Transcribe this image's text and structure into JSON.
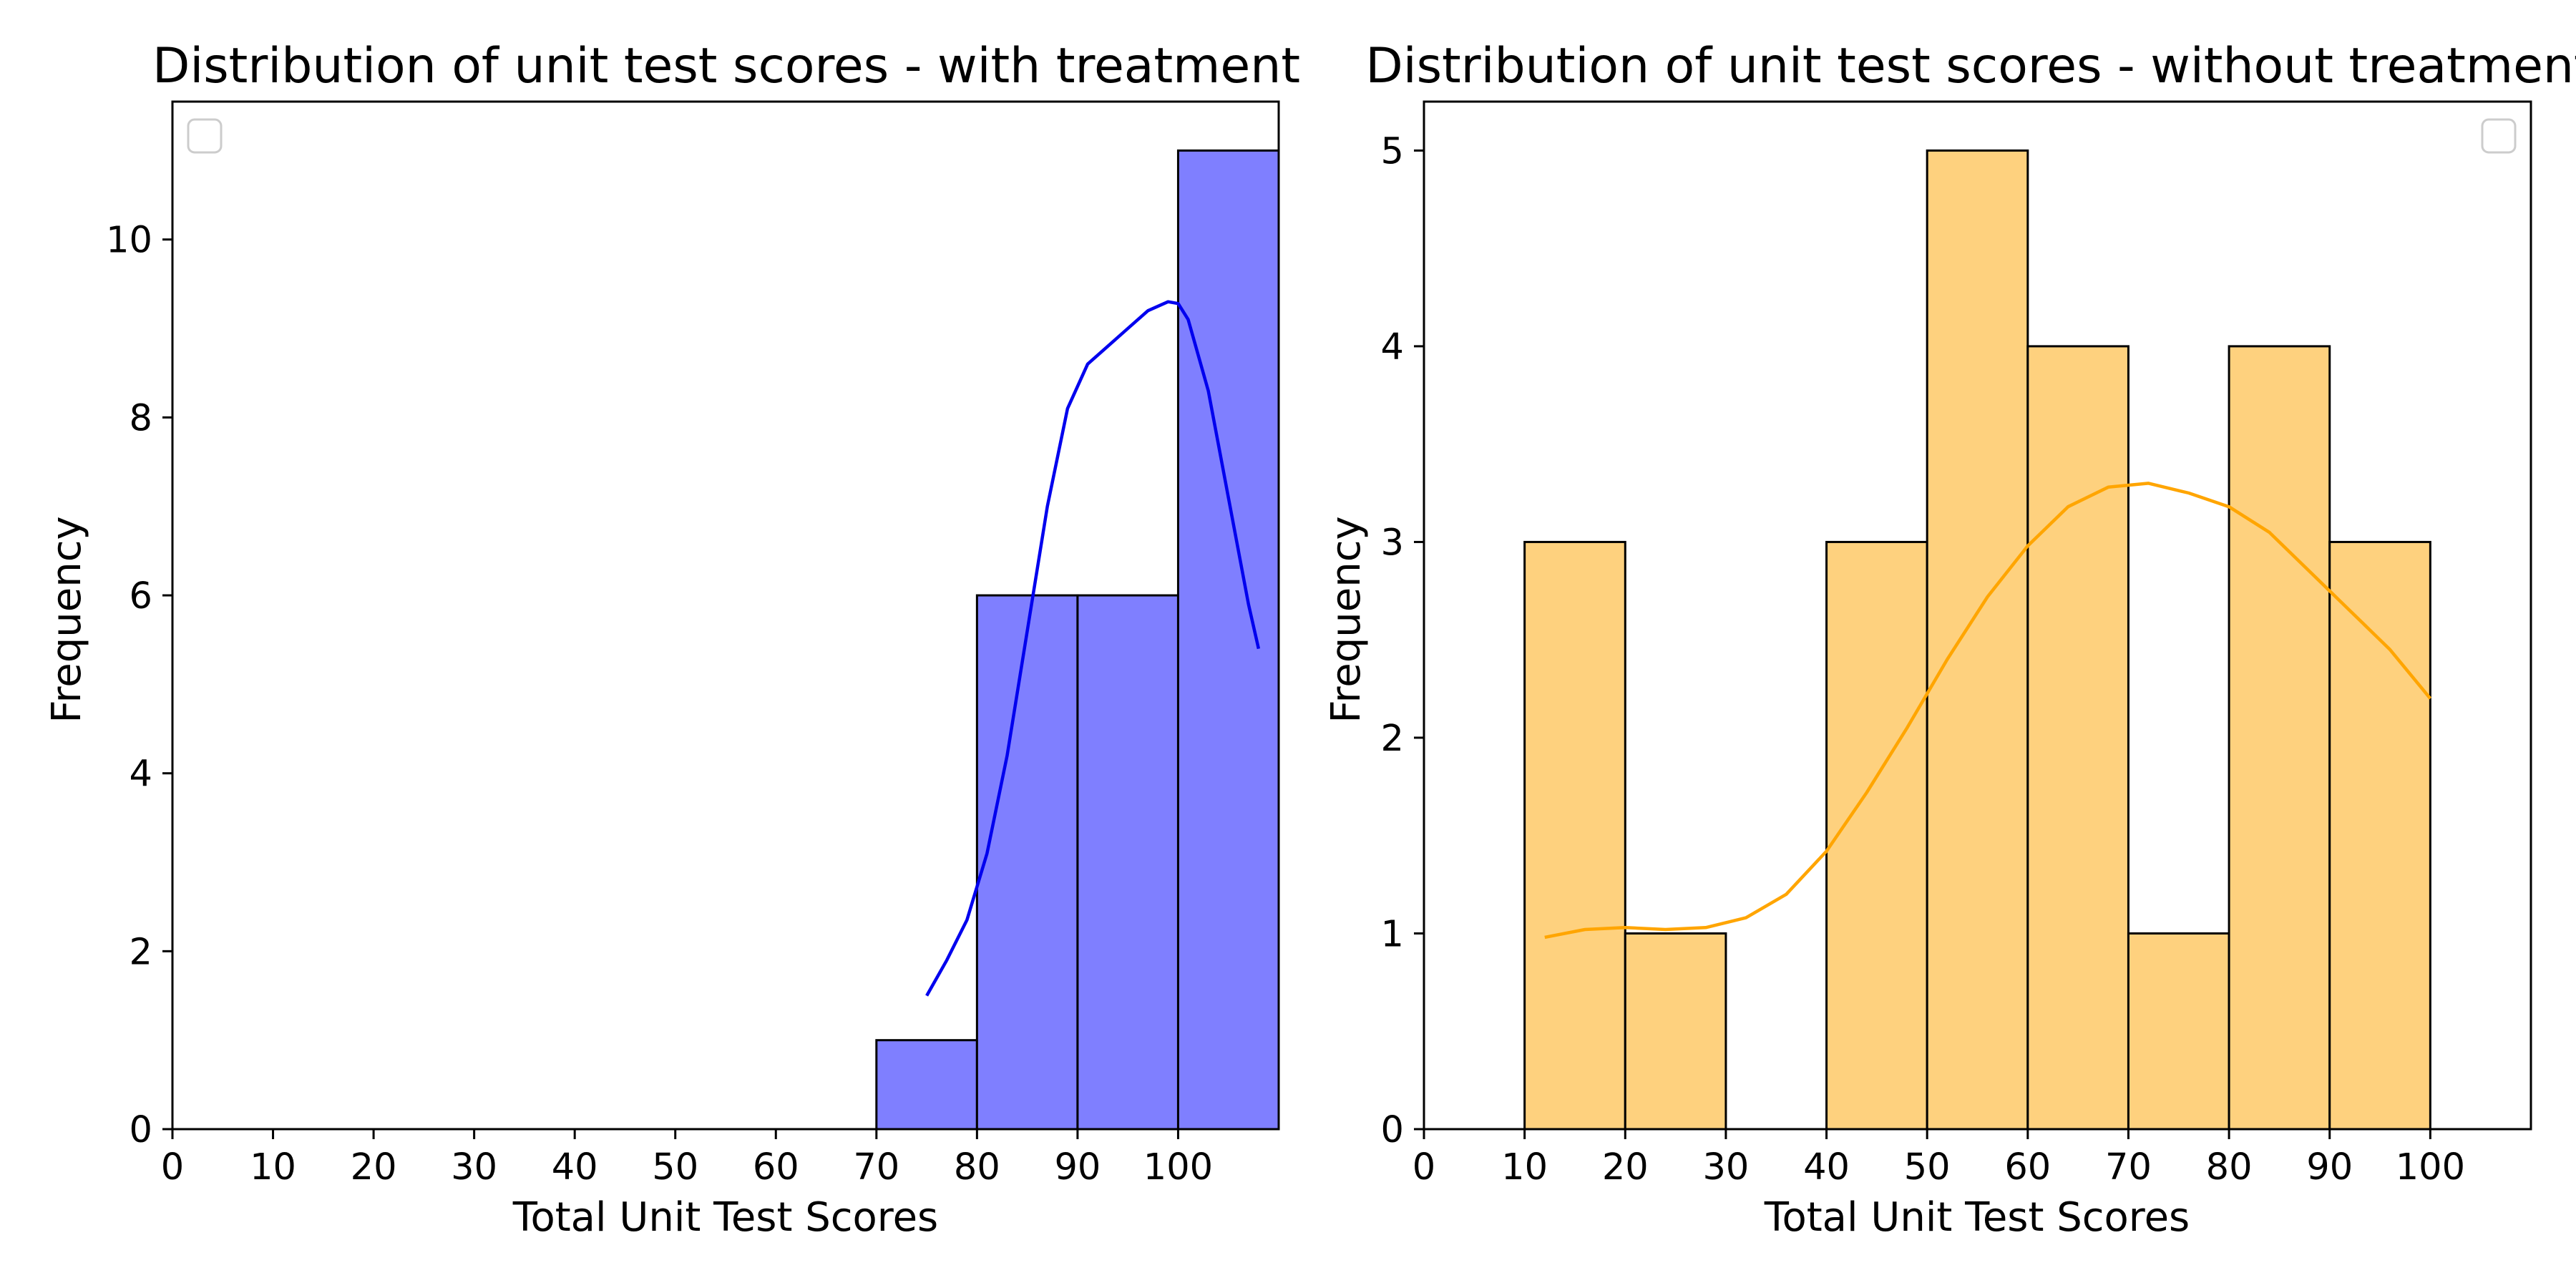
{
  "figure": {
    "background": "#ffffff"
  },
  "chart_data": [
    {
      "type": "bar",
      "subtype": "histogram",
      "title": "Distribution of unit test scores - with treatment",
      "xlabel": "Total Unit Test Scores",
      "ylabel": "Frequency",
      "xlim": [
        0,
        110
      ],
      "ylim": [
        0,
        11.55
      ],
      "xticks": [
        0,
        10,
        20,
        30,
        40,
        50,
        60,
        70,
        80,
        90,
        100
      ],
      "yticks": [
        0,
        2,
        4,
        6,
        8,
        10
      ],
      "bin_edges": [
        70,
        80,
        90,
        100,
        110
      ],
      "values": [
        1,
        6,
        6,
        11
      ],
      "bar_color": "#7f7fff",
      "edge_color": "#000000",
      "kde_color": "#0000ee",
      "kde": {
        "x": [
          75,
          77,
          79,
          81,
          83,
          85,
          87,
          89,
          91,
          93,
          95,
          97,
          99,
          100,
          101,
          103,
          105,
          107,
          108
        ],
        "y": [
          1.5,
          1.9,
          2.35,
          3.1,
          4.2,
          5.6,
          7.0,
          8.1,
          8.6,
          8.8,
          9.0,
          9.2,
          9.3,
          9.28,
          9.1,
          8.3,
          7.1,
          5.9,
          5.4
        ]
      },
      "grid": false,
      "legend": {
        "placement": "top-left",
        "entries": []
      }
    },
    {
      "type": "bar",
      "subtype": "histogram",
      "title": "Distribution of unit test scores - without treatment",
      "xlabel": "Total Unit Test Scores",
      "ylabel": "Frequency",
      "xlim": [
        0,
        110
      ],
      "ylim": [
        0,
        5.25
      ],
      "xticks": [
        0,
        10,
        20,
        30,
        40,
        50,
        60,
        70,
        80,
        90,
        100
      ],
      "yticks": [
        0,
        1,
        2,
        3,
        4,
        5
      ],
      "bin_edges": [
        10,
        20,
        30,
        40,
        50,
        60,
        70,
        80,
        90,
        100,
        110
      ],
      "values": [
        3,
        1,
        0,
        3,
        5,
        4,
        1,
        4,
        3,
        0
      ],
      "bar_color": "#fed17e",
      "edge_color": "#000000",
      "kde_color": "#ffa500",
      "kde": {
        "x": [
          12,
          16,
          20,
          24,
          28,
          32,
          36,
          40,
          44,
          48,
          52,
          56,
          60,
          64,
          68,
          72,
          76,
          80,
          84,
          88,
          92,
          96,
          100
        ],
        "y": [
          0.98,
          1.02,
          1.03,
          1.02,
          1.03,
          1.08,
          1.2,
          1.42,
          1.72,
          2.05,
          2.4,
          2.72,
          2.98,
          3.18,
          3.28,
          3.3,
          3.25,
          3.18,
          3.05,
          2.85,
          2.65,
          2.45,
          2.2
        ]
      },
      "grid": false,
      "legend": {
        "placement": "top-right",
        "entries": []
      }
    }
  ]
}
